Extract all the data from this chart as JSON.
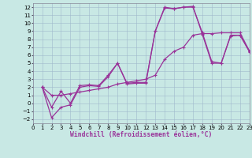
{
  "bg_color": "#c8e8e4",
  "grid_color": "#9fb8cc",
  "line_color": "#993399",
  "marker_size": 3,
  "line_width": 0.9,
  "xlabel": "Windchill (Refroidissement éolien,°C)",
  "xlabel_fontsize": 5.8,
  "tick_fontsize": 5.0,
  "xlim": [
    0,
    23
  ],
  "ylim": [
    -2.5,
    12.5
  ],
  "xticks": [
    0,
    1,
    2,
    3,
    4,
    5,
    6,
    7,
    8,
    9,
    10,
    11,
    12,
    13,
    14,
    15,
    16,
    17,
    18,
    19,
    20,
    21,
    22,
    23
  ],
  "yticks": [
    -2,
    -1,
    0,
    1,
    2,
    3,
    4,
    5,
    6,
    7,
    8,
    9,
    10,
    11,
    12
  ],
  "line1_x": [
    1,
    2,
    3,
    4,
    5,
    6,
    7,
    8,
    9,
    10,
    11,
    12,
    13,
    14,
    15,
    16,
    17,
    18,
    19,
    20,
    21,
    22,
    23
  ],
  "line1_y": [
    2.0,
    -0.5,
    1.5,
    0.0,
    2.2,
    2.3,
    2.2,
    3.5,
    5.0,
    2.5,
    2.6,
    2.6,
    9.0,
    12.0,
    11.8,
    12.0,
    12.0,
    8.8,
    5.2,
    5.0,
    8.5,
    8.5,
    6.5
  ],
  "line2_x": [
    1,
    2,
    3,
    4,
    5,
    6,
    7,
    8,
    9,
    10,
    11,
    12,
    13,
    14,
    15,
    16,
    17,
    18,
    19,
    20,
    21,
    22,
    23
  ],
  "line2_y": [
    2.0,
    -1.8,
    -0.5,
    -0.2,
    2.0,
    2.2,
    2.1,
    3.3,
    5.0,
    2.4,
    2.5,
    2.5,
    9.0,
    11.9,
    11.8,
    12.0,
    12.1,
    8.6,
    5.0,
    5.0,
    8.4,
    8.5,
    6.4
  ],
  "line3_x": [
    1,
    2,
    3,
    4,
    5,
    6,
    7,
    8,
    9,
    10,
    11,
    12,
    13,
    14,
    15,
    16,
    17,
    18,
    19,
    20,
    21,
    22,
    23
  ],
  "line3_y": [
    2.0,
    1.0,
    1.0,
    1.2,
    1.4,
    1.6,
    1.8,
    2.0,
    2.4,
    2.6,
    2.8,
    3.0,
    3.5,
    5.5,
    6.5,
    7.0,
    8.5,
    8.7,
    8.7,
    8.8,
    8.8,
    8.8,
    6.5
  ]
}
